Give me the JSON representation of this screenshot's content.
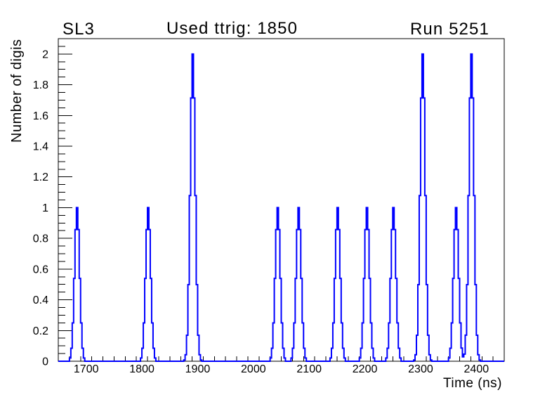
{
  "header": {
    "left_label": "SL3",
    "title": "Used ttrig: 1850",
    "right_label": "Run 5251"
  },
  "chart_data": {
    "type": "line",
    "title": "Used ttrig: 1850",
    "subtitle_left": "SL3",
    "subtitle_right": "Run 5251",
    "xlabel": "Time (ns)",
    "ylabel": "Number of digis",
    "xlim": [
      1650,
      2450
    ],
    "ylim": [
      0,
      2.1
    ],
    "x_tick_labels": [
      "1700",
      "1800",
      "1900",
      "2000",
      "2100",
      "2200",
      "2300",
      "2400"
    ],
    "x_major_step": 100,
    "x_minor_step": 20,
    "y_tick_labels": [
      "0",
      "0.2",
      "0.4",
      "0.6",
      "0.8",
      "1",
      "1.2",
      "1.4",
      "1.6",
      "1.8",
      "2"
    ],
    "y_major_step": 0.2,
    "y_minor_step": 0.05,
    "grid": false,
    "legend": false,
    "line_color": "#0000ff",
    "background_color": "#ffffff",
    "peak_sigma_ns": 4.5,
    "bin_width_ns": 2.5,
    "peaks": [
      {
        "time": 1683,
        "height": 1
      },
      {
        "time": 1810,
        "height": 1
      },
      {
        "time": 1892,
        "height": 2
      },
      {
        "time": 2043,
        "height": 1
      },
      {
        "time": 2082,
        "height": 1
      },
      {
        "time": 2152,
        "height": 1
      },
      {
        "time": 2203,
        "height": 1
      },
      {
        "time": 2252,
        "height": 1
      },
      {
        "time": 2303,
        "height": 2
      },
      {
        "time": 2363,
        "height": 1
      },
      {
        "time": 2392,
        "height": 2
      }
    ]
  }
}
